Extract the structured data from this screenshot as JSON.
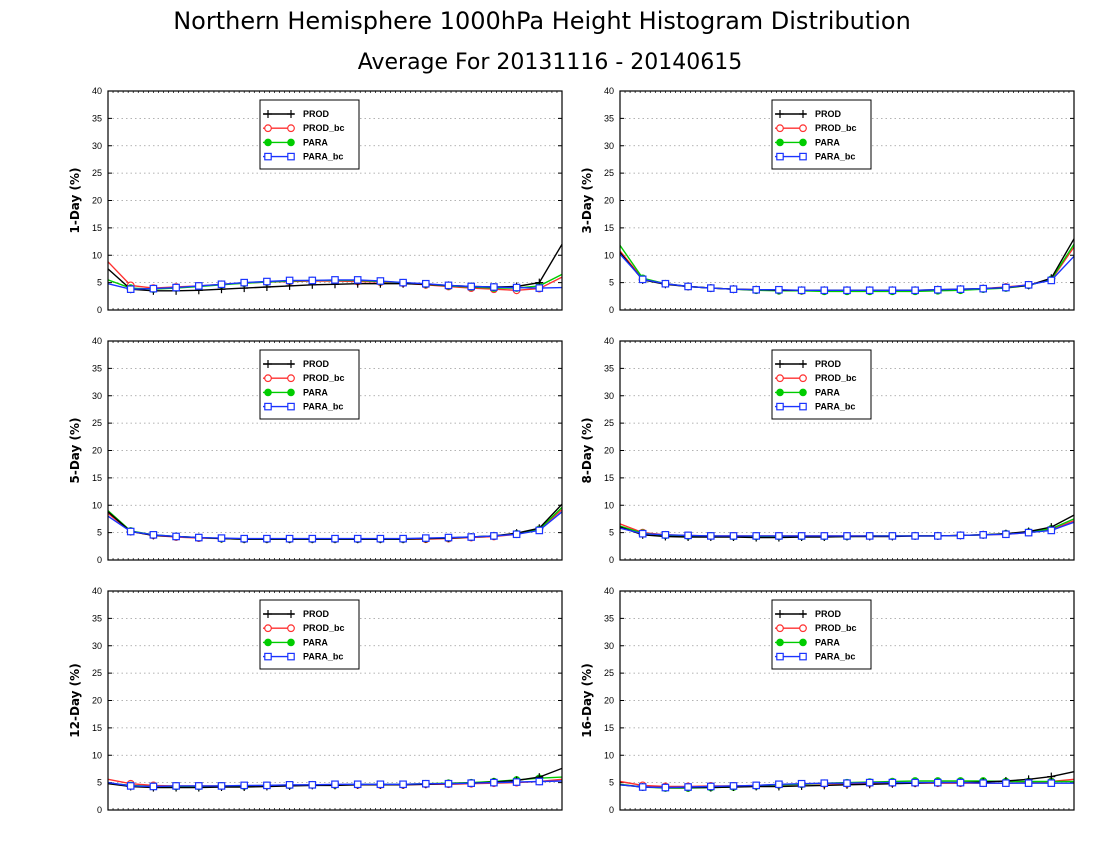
{
  "figure": {
    "title": "Northern Hemisphere 1000hPa Height Histogram Distribution",
    "subtitle": "Average For 20131116 - 20140615"
  },
  "series_meta": [
    {
      "name": "PROD",
      "color": "#000000",
      "marker": "plus"
    },
    {
      "name": "PROD_bc",
      "color": "#ff3030",
      "marker": "open-circle"
    },
    {
      "name": "PARA",
      "color": "#00cc00",
      "marker": "filled-circle"
    },
    {
      "name": "PARA_bc",
      "color": "#1a33ff",
      "marker": "open-square"
    }
  ],
  "chart_data": [
    {
      "type": "line",
      "ylabel": "1-Day (%)",
      "ylim": [
        0,
        40
      ],
      "yticks": [
        0,
        5,
        10,
        15,
        20,
        25,
        30,
        35,
        40
      ],
      "grid": true,
      "legend": "top-center",
      "x": [
        1,
        2,
        3,
        4,
        5,
        6,
        7,
        8,
        9,
        10,
        11,
        12,
        13,
        14,
        15,
        16,
        17,
        18,
        19,
        20,
        21
      ],
      "series": [
        {
          "name": "PROD",
          "values": [
            7.5,
            3.8,
            3.5,
            3.5,
            3.6,
            3.8,
            4.0,
            4.2,
            4.4,
            4.6,
            4.7,
            4.8,
            4.8,
            4.8,
            4.7,
            4.5,
            4.3,
            4.2,
            4.3,
            5.0,
            12.0
          ]
        },
        {
          "name": "PROD_bc",
          "values": [
            8.8,
            4.5,
            4.0,
            4.2,
            4.4,
            4.7,
            4.9,
            5.1,
            5.2,
            5.3,
            5.3,
            5.2,
            5.1,
            4.9,
            4.6,
            4.3,
            4.0,
            3.8,
            3.6,
            3.9,
            6.0
          ]
        },
        {
          "name": "PARA",
          "values": [
            5.5,
            4.0,
            3.8,
            4.0,
            4.3,
            4.6,
            4.9,
            5.1,
            5.3,
            5.4,
            5.4,
            5.4,
            5.2,
            5.0,
            4.7,
            4.4,
            4.2,
            4.0,
            4.0,
            4.4,
            6.5
          ]
        },
        {
          "name": "PARA_bc",
          "values": [
            4.8,
            3.8,
            3.9,
            4.1,
            4.4,
            4.7,
            5.0,
            5.2,
            5.4,
            5.4,
            5.5,
            5.5,
            5.3,
            5.0,
            4.8,
            4.5,
            4.3,
            4.2,
            4.1,
            4.0,
            4.1
          ]
        }
      ]
    },
    {
      "type": "line",
      "ylabel": "3-Day (%)",
      "ylim": [
        0,
        40
      ],
      "yticks": [
        0,
        5,
        10,
        15,
        20,
        25,
        30,
        35,
        40
      ],
      "grid": true,
      "legend": "top-center",
      "x": [
        1,
        2,
        3,
        4,
        5,
        6,
        7,
        8,
        9,
        10,
        11,
        12,
        13,
        14,
        15,
        16,
        17,
        18,
        19,
        20,
        21
      ],
      "series": [
        {
          "name": "PROD",
          "values": [
            10.5,
            5.5,
            4.7,
            4.3,
            4.0,
            3.8,
            3.7,
            3.6,
            3.6,
            3.6,
            3.6,
            3.6,
            3.6,
            3.6,
            3.7,
            3.8,
            3.9,
            4.1,
            4.5,
            5.8,
            13.0
          ]
        },
        {
          "name": "PROD_bc",
          "values": [
            10.8,
            5.7,
            4.8,
            4.3,
            4.0,
            3.8,
            3.7,
            3.6,
            3.5,
            3.5,
            3.5,
            3.5,
            3.5,
            3.5,
            3.6,
            3.7,
            3.9,
            4.2,
            4.6,
            5.5,
            11.5
          ]
        },
        {
          "name": "PARA",
          "values": [
            11.8,
            5.8,
            4.8,
            4.3,
            4.0,
            3.8,
            3.6,
            3.5,
            3.5,
            3.4,
            3.4,
            3.4,
            3.4,
            3.4,
            3.5,
            3.6,
            3.8,
            4.0,
            4.5,
            5.6,
            12.0
          ]
        },
        {
          "name": "PARA_bc",
          "values": [
            10.2,
            5.6,
            4.8,
            4.3,
            4.0,
            3.8,
            3.7,
            3.7,
            3.6,
            3.6,
            3.6,
            3.6,
            3.6,
            3.6,
            3.7,
            3.8,
            3.9,
            4.1,
            4.6,
            5.4,
            9.8
          ]
        }
      ]
    },
    {
      "type": "line",
      "ylabel": "5-Day (%)",
      "ylim": [
        0,
        40
      ],
      "yticks": [
        0,
        5,
        10,
        15,
        20,
        25,
        30,
        35,
        40
      ],
      "grid": true,
      "legend": "top-center",
      "x": [
        1,
        2,
        3,
        4,
        5,
        6,
        7,
        8,
        9,
        10,
        11,
        12,
        13,
        14,
        15,
        16,
        17,
        18,
        19,
        20,
        21
      ],
      "series": [
        {
          "name": "PROD",
          "values": [
            8.8,
            5.2,
            4.5,
            4.3,
            4.1,
            3.9,
            3.8,
            3.8,
            3.8,
            3.8,
            3.8,
            3.8,
            3.8,
            3.8,
            3.9,
            4.0,
            4.2,
            4.4,
            4.9,
            5.8,
            10.2
          ]
        },
        {
          "name": "PROD_bc",
          "values": [
            8.5,
            5.2,
            4.5,
            4.2,
            4.0,
            3.9,
            3.8,
            3.8,
            3.8,
            3.8,
            3.8,
            3.8,
            3.8,
            3.8,
            3.8,
            3.9,
            4.1,
            4.3,
            4.7,
            5.6,
            9.2
          ]
        },
        {
          "name": "PARA",
          "values": [
            9.0,
            5.3,
            4.6,
            4.3,
            4.1,
            3.9,
            3.8,
            3.8,
            3.8,
            3.8,
            3.8,
            3.8,
            3.8,
            3.8,
            3.9,
            4.0,
            4.2,
            4.4,
            4.8,
            5.6,
            9.6
          ]
        },
        {
          "name": "PARA_bc",
          "values": [
            8.0,
            5.2,
            4.6,
            4.3,
            4.1,
            4.0,
            3.9,
            3.9,
            3.9,
            3.9,
            3.9,
            3.9,
            3.9,
            3.9,
            4.0,
            4.1,
            4.2,
            4.4,
            4.7,
            5.4,
            8.8
          ]
        }
      ]
    },
    {
      "type": "line",
      "ylabel": "8-Day (%)",
      "ylim": [
        0,
        40
      ],
      "yticks": [
        0,
        5,
        10,
        15,
        20,
        25,
        30,
        35,
        40
      ],
      "grid": true,
      "legend": "top-center",
      "x": [
        1,
        2,
        3,
        4,
        5,
        6,
        7,
        8,
        9,
        10,
        11,
        12,
        13,
        14,
        15,
        16,
        17,
        18,
        19,
        20,
        21
      ],
      "series": [
        {
          "name": "PROD",
          "values": [
            6.0,
            4.6,
            4.3,
            4.2,
            4.2,
            4.2,
            4.1,
            4.1,
            4.2,
            4.2,
            4.3,
            4.3,
            4.3,
            4.4,
            4.4,
            4.5,
            4.6,
            4.8,
            5.2,
            6.0,
            8.2
          ]
        },
        {
          "name": "PROD_bc",
          "values": [
            6.6,
            5.0,
            4.6,
            4.5,
            4.4,
            4.4,
            4.4,
            4.4,
            4.4,
            4.4,
            4.4,
            4.4,
            4.4,
            4.4,
            4.4,
            4.5,
            4.6,
            4.7,
            5.0,
            5.5,
            7.2
          ]
        },
        {
          "name": "PARA",
          "values": [
            6.2,
            4.9,
            4.5,
            4.4,
            4.4,
            4.3,
            4.3,
            4.3,
            4.3,
            4.3,
            4.3,
            4.4,
            4.4,
            4.4,
            4.4,
            4.5,
            4.6,
            4.8,
            5.1,
            5.7,
            7.5
          ]
        },
        {
          "name": "PARA_bc",
          "values": [
            5.8,
            4.8,
            4.6,
            4.5,
            4.4,
            4.4,
            4.4,
            4.4,
            4.4,
            4.4,
            4.4,
            4.4,
            4.4,
            4.4,
            4.4,
            4.5,
            4.6,
            4.7,
            5.0,
            5.4,
            6.9
          ]
        }
      ]
    },
    {
      "type": "line",
      "ylabel": "12-Day (%)",
      "ylim": [
        0,
        40
      ],
      "yticks": [
        0,
        5,
        10,
        15,
        20,
        25,
        30,
        35,
        40
      ],
      "grid": true,
      "legend": "top-center",
      "x": [
        1,
        2,
        3,
        4,
        5,
        6,
        7,
        8,
        9,
        10,
        11,
        12,
        13,
        14,
        15,
        16,
        17,
        18,
        19,
        20,
        21
      ],
      "series": [
        {
          "name": "PROD",
          "values": [
            4.8,
            4.3,
            4.1,
            4.1,
            4.1,
            4.2,
            4.2,
            4.3,
            4.4,
            4.5,
            4.5,
            4.6,
            4.6,
            4.6,
            4.7,
            4.8,
            4.9,
            5.1,
            5.4,
            6.0,
            7.6
          ]
        },
        {
          "name": "PROD_bc",
          "values": [
            5.6,
            4.8,
            4.5,
            4.4,
            4.4,
            4.4,
            4.4,
            4.5,
            4.5,
            4.6,
            4.6,
            4.6,
            4.6,
            4.6,
            4.7,
            4.7,
            4.8,
            4.9,
            5.0,
            5.2,
            5.6
          ]
        },
        {
          "name": "PARA",
          "values": [
            4.9,
            4.5,
            4.3,
            4.3,
            4.3,
            4.4,
            4.4,
            4.5,
            4.5,
            4.6,
            4.6,
            4.7,
            4.7,
            4.7,
            4.8,
            4.9,
            5.0,
            5.2,
            5.5,
            5.8,
            6.0
          ]
        },
        {
          "name": "PARA_bc",
          "values": [
            5.0,
            4.4,
            4.3,
            4.4,
            4.4,
            4.4,
            4.5,
            4.5,
            4.6,
            4.6,
            4.7,
            4.7,
            4.7,
            4.7,
            4.8,
            4.8,
            4.9,
            5.0,
            5.1,
            5.2,
            5.3
          ]
        }
      ]
    },
    {
      "type": "line",
      "ylabel": "16-Day (%)",
      "ylim": [
        0,
        40
      ],
      "yticks": [
        0,
        5,
        10,
        15,
        20,
        25,
        30,
        35,
        40
      ],
      "grid": true,
      "legend": "top-center",
      "x": [
        1,
        2,
        3,
        4,
        5,
        6,
        7,
        8,
        9,
        10,
        11,
        12,
        13,
        14,
        15,
        16,
        17,
        18,
        19,
        20,
        21
      ],
      "series": [
        {
          "name": "PROD",
          "values": [
            4.6,
            4.2,
            4.1,
            4.1,
            4.1,
            4.2,
            4.3,
            4.3,
            4.4,
            4.5,
            4.6,
            4.7,
            4.8,
            4.9,
            5.0,
            5.0,
            5.1,
            5.3,
            5.6,
            6.1,
            7.0
          ]
        },
        {
          "name": "PROD_bc",
          "values": [
            5.2,
            4.5,
            4.3,
            4.3,
            4.4,
            4.4,
            4.5,
            4.6,
            4.7,
            4.8,
            4.8,
            4.9,
            4.9,
            4.9,
            4.9,
            4.9,
            4.9,
            4.9,
            5.0,
            5.2,
            5.6
          ]
        },
        {
          "name": "PARA",
          "values": [
            4.7,
            4.2,
            4.0,
            4.0,
            4.1,
            4.2,
            4.4,
            4.6,
            4.7,
            4.9,
            5.0,
            5.1,
            5.2,
            5.3,
            5.3,
            5.3,
            5.3,
            5.2,
            5.2,
            5.2,
            5.2
          ]
        },
        {
          "name": "PARA_bc",
          "values": [
            4.6,
            4.2,
            4.1,
            4.2,
            4.3,
            4.4,
            4.5,
            4.7,
            4.8,
            4.9,
            4.9,
            5.0,
            5.0,
            5.0,
            5.0,
            5.0,
            4.9,
            4.9,
            4.9,
            4.9,
            4.9
          ]
        }
      ]
    }
  ]
}
